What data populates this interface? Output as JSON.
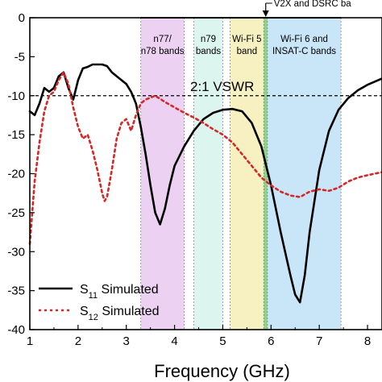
{
  "chart_data": {
    "type": "line",
    "title": "",
    "xlabel": "Frequency (GHz)",
    "ylabel": "",
    "xlim": [
      1,
      8.3
    ],
    "ylim": [
      -40,
      0
    ],
    "y_display": "inverted (0 at top, -40 at bottom)",
    "x_ticks": [
      "1",
      "2",
      "3",
      "4",
      "5",
      "6",
      "7",
      "8"
    ],
    "y_ticks": [
      "0",
      "-5",
      "-10",
      "-15",
      "-20",
      "-25",
      "-30",
      "-35",
      "-40"
    ],
    "grid": false,
    "legend_position": "bottom-left",
    "series": [
      {
        "name": "S11 Simulated",
        "label_main": "S",
        "label_sub": "11",
        "label_rest": " Simulated",
        "style": "solid",
        "color": "#000000",
        "x": [
          1.0,
          1.1,
          1.2,
          1.3,
          1.4,
          1.5,
          1.6,
          1.7,
          1.8,
          1.9,
          2.0,
          2.1,
          2.2,
          2.3,
          2.4,
          2.5,
          2.6,
          2.7,
          2.8,
          2.9,
          3.0,
          3.1,
          3.2,
          3.3,
          3.4,
          3.5,
          3.6,
          3.7,
          3.8,
          3.9,
          4.0,
          4.2,
          4.4,
          4.6,
          4.8,
          5.0,
          5.2,
          5.4,
          5.6,
          5.8,
          6.0,
          6.2,
          6.4,
          6.5,
          6.6,
          6.7,
          6.8,
          7.0,
          7.2,
          7.4,
          7.6,
          7.8,
          8.0,
          8.3
        ],
        "y": [
          -12.0,
          -12.5,
          -11.0,
          -9.0,
          -9.5,
          -9.0,
          -7.5,
          -7.0,
          -9.0,
          -10.5,
          -8.0,
          -6.5,
          -6.3,
          -6.0,
          -6.0,
          -6.0,
          -6.2,
          -7.0,
          -7.5,
          -8.0,
          -8.5,
          -9.5,
          -11.0,
          -14.0,
          -17.5,
          -21.5,
          -25.0,
          -26.5,
          -24.5,
          -21.5,
          -19.0,
          -16.5,
          -14.5,
          -13.0,
          -12.2,
          -11.8,
          -11.7,
          -12.0,
          -13.5,
          -16.5,
          -21.5,
          -27.5,
          -33.0,
          -35.5,
          -36.5,
          -33.0,
          -27.5,
          -19.5,
          -14.5,
          -11.8,
          -10.3,
          -9.3,
          -8.6,
          -7.8
        ]
      },
      {
        "name": "S12 Simulated",
        "label_main": "S",
        "label_sub": "12",
        "label_rest": " Simulated",
        "style": "dotted",
        "color": "#d62728",
        "x": [
          1.0,
          1.1,
          1.2,
          1.3,
          1.4,
          1.5,
          1.6,
          1.7,
          1.8,
          1.9,
          2.0,
          2.1,
          2.2,
          2.3,
          2.4,
          2.5,
          2.55,
          2.6,
          2.7,
          2.8,
          2.9,
          3.0,
          3.1,
          3.2,
          3.3,
          3.4,
          3.6,
          3.8,
          4.0,
          4.2,
          4.4,
          4.6,
          4.8,
          5.0,
          5.2,
          5.4,
          5.6,
          5.8,
          6.0,
          6.2,
          6.4,
          6.6,
          6.8,
          7.0,
          7.2,
          7.4,
          7.6,
          7.8,
          8.0,
          8.3
        ],
        "y": [
          -29.0,
          -21.0,
          -16.0,
          -12.0,
          -10.0,
          -9.5,
          -8.0,
          -7.0,
          -8.5,
          -11.5,
          -14.0,
          -15.5,
          -15.0,
          -17.0,
          -19.5,
          -22.5,
          -23.5,
          -23.0,
          -19.5,
          -15.5,
          -13.5,
          -13.0,
          -14.5,
          -12.5,
          -11.0,
          -10.5,
          -10.0,
          -10.8,
          -11.5,
          -12.2,
          -12.8,
          -13.5,
          -14.3,
          -15.0,
          -16.0,
          -17.5,
          -19.0,
          -20.5,
          -21.5,
          -22.3,
          -22.8,
          -23.0,
          -22.3,
          -22.0,
          -22.2,
          -21.8,
          -21.0,
          -20.5,
          -20.2,
          -19.8
        ]
      }
    ],
    "reference_line": {
      "y": -10,
      "label": "2:1 VSWR",
      "style": "dashed"
    },
    "bands": [
      {
        "name": "n77/n78",
        "label_lines": [
          "n77/",
          "n78 bands"
        ],
        "x_start": 3.3,
        "x_end": 4.2,
        "color": "#e9c9f1"
      },
      {
        "name": "n79",
        "label_lines": [
          "n79",
          "bands"
        ],
        "x_start": 4.4,
        "x_end": 5.0,
        "color": "#d6f5ec"
      },
      {
        "name": "Wi-Fi 5",
        "label_lines": [
          "Wi-Fi 5",
          "band"
        ],
        "x_start": 5.15,
        "x_end": 5.85,
        "color": "#f6edb5"
      },
      {
        "name": "V2X and DSRC",
        "label_lines": [],
        "x_start": 5.85,
        "x_end": 5.925,
        "color": "#78cc74"
      },
      {
        "name": "Wi-Fi 6 and INSAT-C",
        "label_lines": [
          "Wi-Fi 6 and",
          "INSAT-C bands"
        ],
        "x_start": 5.925,
        "x_end": 7.45,
        "color": "#bfe0f7"
      }
    ],
    "annotation": {
      "text": "V2X and DSRC ba",
      "x": 5.89
    }
  }
}
